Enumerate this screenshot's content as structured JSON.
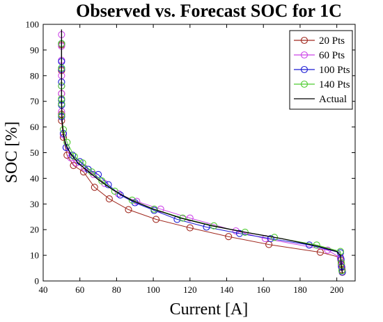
{
  "chart_data": {
    "type": "line",
    "title": "Observed vs. Forecast SOC for 1C",
    "xlabel": "Current [A]",
    "ylabel": "SOC [%]",
    "xlim": [
      40,
      210
    ],
    "ylim": [
      0,
      100
    ],
    "xticks": [
      40,
      60,
      80,
      100,
      120,
      140,
      160,
      180,
      200
    ],
    "yticks": [
      0,
      10,
      20,
      30,
      40,
      50,
      60,
      70,
      80,
      90,
      100
    ],
    "grid": false,
    "legend_position": "top-right",
    "series": [
      {
        "name": "20 Pts",
        "color": "#a0281e",
        "marker": "circle",
        "x": [
          50,
          50,
          50,
          50,
          50,
          51,
          53,
          56.5,
          62,
          68,
          76,
          86.5,
          101.5,
          120,
          141,
          163,
          191,
          202,
          202.3,
          202.5,
          202.7,
          202.9,
          203
        ],
        "y": [
          92,
          82,
          73,
          65,
          62.5,
          56,
          49,
          45,
          42.5,
          36.5,
          32,
          27.8,
          24,
          20.7,
          17.3,
          14.2,
          11.2,
          9.2,
          8,
          6.5,
          5.3,
          4.3,
          3.4
        ]
      },
      {
        "name": "60 Pts",
        "color": "#cc44e8",
        "marker": "circle",
        "x": [
          50,
          50,
          50,
          50,
          50,
          50,
          50,
          50,
          50,
          51,
          52.5,
          55,
          58,
          62.5,
          67.5,
          73.5,
          81,
          91,
          104,
          120,
          145,
          161,
          195,
          202,
          202.5,
          203
        ],
        "y": [
          96,
          91.5,
          86,
          80,
          76,
          73,
          69,
          66,
          64,
          57,
          52,
          48,
          46,
          44,
          41.5,
          38,
          34,
          31,
          28,
          24.5,
          19.5,
          16.5,
          12,
          9,
          6,
          3.5
        ]
      },
      {
        "name": "100 Pts",
        "color": "#1c1cd4",
        "marker": "circle",
        "x": [
          50,
          50,
          50,
          50,
          50,
          50,
          50,
          51,
          52.5,
          56,
          60,
          64.5,
          70,
          75.5,
          82,
          90,
          100.5,
          113,
          129,
          147,
          164,
          185,
          202,
          202.3,
          202.6,
          203
        ],
        "y": [
          92.5,
          85.5,
          82.5,
          77.5,
          70.5,
          68.5,
          64,
          57.5,
          52,
          49,
          46.5,
          43.5,
          41.5,
          37.5,
          33.5,
          30.5,
          27.5,
          24,
          21,
          18.5,
          16.5,
          14,
          11,
          8.5,
          5.5,
          3.5
        ]
      },
      {
        "name": "140 Pts",
        "color": "#4ccc2e",
        "marker": "circle",
        "x": [
          50,
          50,
          50,
          50,
          50,
          50,
          51,
          53,
          57,
          61.5,
          66.5,
          72,
          79,
          88.5,
          100.5,
          116,
          133,
          150,
          166,
          189,
          202,
          202.4,
          202.8
        ],
        "y": [
          92.5,
          83,
          76,
          71,
          69,
          64.5,
          59,
          54,
          48.5,
          46,
          42.5,
          39,
          35,
          31.5,
          28,
          24.5,
          21.5,
          19,
          17,
          14,
          11.5,
          7,
          4
        ]
      },
      {
        "name": "Actual",
        "color": "#000000",
        "marker": "none",
        "x": [
          50,
          50,
          50.3,
          51,
          52.5,
          55,
          59,
          64,
          70,
          78,
          88,
          100,
          115,
          132,
          150,
          170,
          190,
          200,
          202,
          202.5,
          203
        ],
        "y": [
          98,
          70,
          63,
          57,
          53,
          49.5,
          46,
          43,
          39.5,
          35.5,
          31.5,
          28,
          24.5,
          21.5,
          19,
          16.5,
          13.5,
          11.5,
          10,
          6,
          3
        ]
      }
    ]
  }
}
